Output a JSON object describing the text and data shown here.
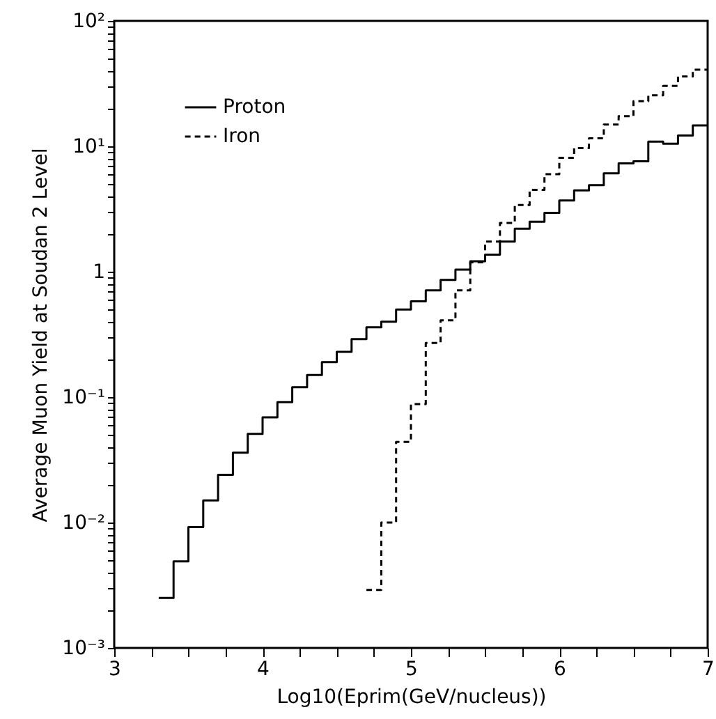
{
  "chart_data": {
    "type": "step",
    "xlabel": "Log10(Eprim(GeV/nucleus))",
    "ylabel": "Average Muon Yield at Soudan 2 Level",
    "log": "y",
    "legend": "top left",
    "grid": false,
    "xlim": [
      3,
      7
    ],
    "ylim": [
      0.001,
      100
    ],
    "xticks": [
      3,
      {
        "value": 3.25,
        "label": null
      },
      {
        "value": 3.5,
        "label": null
      },
      {
        "value": 3.75,
        "label": null
      },
      4,
      {
        "value": 4.25,
        "label": null
      },
      {
        "value": 4.5,
        "label": null
      },
      {
        "value": 4.75,
        "label": null
      },
      5,
      {
        "value": 5.25,
        "label": null
      },
      {
        "value": 5.5,
        "label": null
      },
      {
        "value": 5.75,
        "label": null
      },
      6,
      {
        "value": 6.25,
        "label": null
      },
      {
        "value": 6.5,
        "label": null
      },
      {
        "value": 6.75,
        "label": null
      },
      7
    ],
    "yticks": [
      {
        "value": 0.001,
        "label": "10⁻³"
      },
      {
        "value": 0.002,
        "label": null
      },
      {
        "value": 0.003,
        "label": null
      },
      {
        "value": 0.004,
        "label": null
      },
      {
        "value": 0.005,
        "label": null
      },
      {
        "value": 0.006,
        "label": null
      },
      {
        "value": 0.007,
        "label": null
      },
      {
        "value": 0.008,
        "label": null
      },
      {
        "value": 0.009,
        "label": null
      },
      {
        "value": 0.01,
        "label": "10⁻²"
      },
      {
        "value": 0.02,
        "label": null
      },
      {
        "value": 0.03,
        "label": null
      },
      {
        "value": 0.04,
        "label": null
      },
      {
        "value": 0.05,
        "label": null
      },
      {
        "value": 0.06,
        "label": null
      },
      {
        "value": 0.07,
        "label": null
      },
      {
        "value": 0.08,
        "label": null
      },
      {
        "value": 0.09,
        "label": null
      },
      {
        "value": 0.1,
        "label": "10⁻¹"
      },
      {
        "value": 0.2,
        "label": null
      },
      {
        "value": 0.3,
        "label": null
      },
      {
        "value": 0.4,
        "label": null
      },
      {
        "value": 0.5,
        "label": null
      },
      {
        "value": 0.6,
        "label": null
      },
      {
        "value": 0.7,
        "label": null
      },
      {
        "value": 0.8,
        "label": null
      },
      {
        "value": 0.9,
        "label": null
      },
      1,
      {
        "value": 2,
        "label": null
      },
      {
        "value": 3,
        "label": null
      },
      {
        "value": 4,
        "label": null
      },
      {
        "value": 5,
        "label": null
      },
      {
        "value": 6,
        "label": null
      },
      {
        "value": 7,
        "label": null
      },
      {
        "value": 8,
        "label": null
      },
      {
        "value": 9,
        "label": null
      },
      {
        "value": 10,
        "label": "10¹"
      },
      {
        "value": 20,
        "label": null
      },
      {
        "value": 30,
        "label": null
      },
      {
        "value": 40,
        "label": null
      },
      {
        "value": 50,
        "label": null
      },
      {
        "value": 60,
        "label": null
      },
      {
        "value": 70,
        "label": null
      },
      {
        "value": 80,
        "label": null
      },
      {
        "value": 90,
        "label": null
      },
      {
        "value": 100,
        "label": "10²"
      }
    ],
    "series": [
      {
        "name": "Proton",
        "color": "#000000",
        "line_style": "solid",
        "x": [
          3.3,
          3.4,
          3.5,
          3.6,
          3.7,
          3.8,
          3.9,
          4.0,
          4.1,
          4.2,
          4.3,
          4.4,
          4.5,
          4.6,
          4.7,
          4.8,
          4.9,
          5.0,
          5.1,
          5.2,
          5.3,
          5.4,
          5.5,
          5.6,
          5.7,
          5.8,
          5.9,
          6.0,
          6.1,
          6.2,
          6.3,
          6.4,
          6.5,
          6.6,
          6.7,
          6.8,
          6.9,
          7.0
        ],
        "values": [
          0.0025,
          0.0049,
          0.0092,
          0.015,
          0.024,
          0.036,
          0.051,
          0.069,
          0.091,
          0.12,
          0.15,
          0.19,
          0.23,
          0.29,
          0.36,
          0.4,
          0.5,
          0.58,
          0.71,
          0.86,
          1.04,
          1.21,
          1.37,
          1.74,
          2.2,
          2.5,
          2.95,
          3.7,
          4.45,
          4.9,
          6.1,
          7.3,
          7.6,
          10.9,
          10.5,
          12.2,
          14.7,
          14.7
        ]
      },
      {
        "name": "Iron",
        "color": "#000000",
        "line_style": "dashed",
        "x": [
          4.7,
          4.8,
          4.9,
          5.0,
          5.1,
          5.2,
          5.3,
          5.4,
          5.5,
          5.6,
          5.7,
          5.8,
          5.9,
          6.0,
          6.1,
          6.2,
          6.3,
          6.4,
          6.5,
          6.6,
          6.7,
          6.8,
          6.9,
          7.0
        ],
        "values": [
          0.0029,
          0.01,
          0.044,
          0.088,
          0.27,
          0.41,
          0.71,
          1.19,
          1.74,
          2.45,
          3.4,
          4.5,
          6.0,
          8.1,
          9.7,
          11.6,
          14.9,
          17.4,
          22.9,
          25.5,
          30.3,
          36,
          40.8,
          40.8
        ]
      }
    ]
  }
}
